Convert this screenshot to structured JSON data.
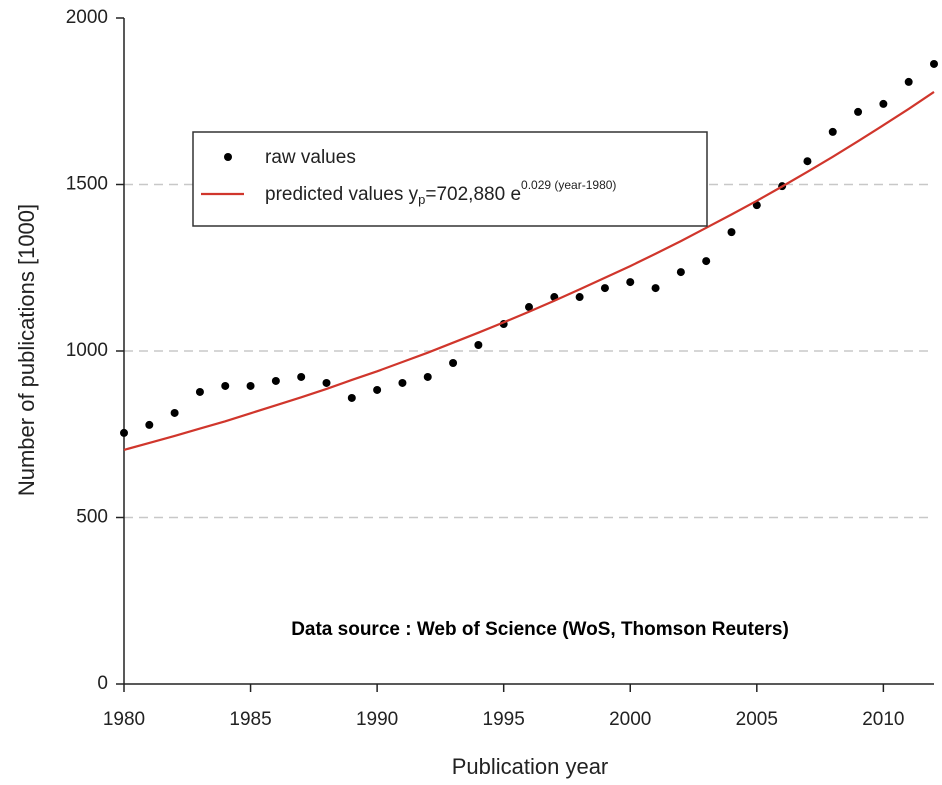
{
  "chart_data": {
    "type": "scatter",
    "x_label": "Publication year",
    "y_label": "Number of publications [1000]",
    "annotation": "Data source : Web of Science (WoS, Thomson Reuters)",
    "x": [
      1980,
      1981,
      1982,
      1983,
      1984,
      1985,
      1986,
      1987,
      1988,
      1989,
      1990,
      1991,
      1992,
      1993,
      1994,
      1995,
      1996,
      1997,
      1998,
      1999,
      2000,
      2001,
      2002,
      2003,
      2004,
      2005,
      2006,
      2007,
      2008,
      2009,
      2010,
      2011,
      2012
    ],
    "series": [
      {
        "name": "raw values",
        "color": "#000000",
        "style": "points",
        "values": [
          754,
          778,
          814,
          877,
          895,
          895,
          910,
          922,
          904,
          859,
          883,
          904,
          922,
          964,
          1018,
          1081,
          1132,
          1162,
          1162,
          1189,
          1207,
          1189,
          1237,
          1270,
          1357,
          1438,
          1495,
          1570,
          1658,
          1718,
          1742,
          1808,
          1862
        ]
      },
      {
        "name": "predicted values",
        "color": "#d0362c",
        "style": "line",
        "formula": {
          "base": "y",
          "sub": "p",
          "mid": "=702,880 e",
          "sup": "0.029 (year-1980)"
        },
        "values": [
          703,
          724,
          745,
          767,
          789,
          813,
          837,
          861,
          886,
          913,
          939,
          967,
          995,
          1025,
          1055,
          1086,
          1118,
          1151,
          1185,
          1220,
          1255,
          1292,
          1330,
          1370,
          1410,
          1451,
          1494,
          1538,
          1583,
          1630,
          1678,
          1727,
          1778
        ]
      }
    ],
    "xlim": [
      1980,
      2012
    ],
    "ylim": [
      0,
      2000
    ],
    "xticks": [
      1980,
      1985,
      1990,
      1995,
      2000,
      2005,
      2010
    ],
    "yticks": [
      0,
      500,
      1000,
      1500,
      2000
    ],
    "grid": true,
    "legend": "upper left"
  }
}
